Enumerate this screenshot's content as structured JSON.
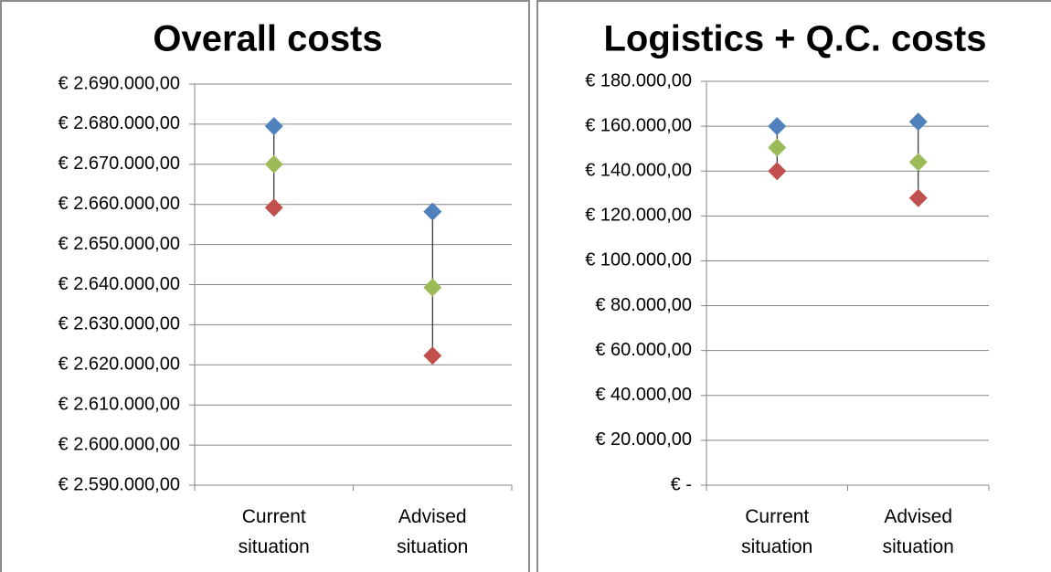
{
  "chart_data": [
    {
      "type": "stock",
      "title": "Overall costs",
      "categories": [
        "Current situation",
        "Advised situation"
      ],
      "series": [
        {
          "color": "#4f81bd",
          "values": [
            2679500,
            2658200
          ]
        },
        {
          "color": "#9bbb59",
          "values": [
            2670000,
            2639300
          ]
        },
        {
          "color": "#c0504d",
          "values": [
            2659200,
            2622300
          ]
        }
      ],
      "ylim": [
        2590000,
        2690000
      ],
      "yticks": [
        {
          "value": 2590000,
          "label": "€ 2.590.000,00"
        },
        {
          "value": 2600000,
          "label": "€ 2.600.000,00"
        },
        {
          "value": 2610000,
          "label": "€ 2.610.000,00"
        },
        {
          "value": 2620000,
          "label": "€ 2.620.000,00"
        },
        {
          "value": 2630000,
          "label": "€ 2.630.000,00"
        },
        {
          "value": 2640000,
          "label": "€ 2.640.000,00"
        },
        {
          "value": 2650000,
          "label": "€ 2.650.000,00"
        },
        {
          "value": 2660000,
          "label": "€ 2.660.000,00"
        },
        {
          "value": 2670000,
          "label": "€ 2.670.000,00"
        },
        {
          "value": 2680000,
          "label": "€ 2.680.000,00"
        },
        {
          "value": 2690000,
          "label": "€ 2.690.000,00"
        }
      ],
      "grid": true
    },
    {
      "type": "stock",
      "title": "Logistics + Q.C. costs",
      "categories": [
        "Current situation",
        "Advised situation"
      ],
      "series": [
        {
          "color": "#4f81bd",
          "values": [
            160000,
            162000
          ]
        },
        {
          "color": "#9bbb59",
          "values": [
            150500,
            144000
          ]
        },
        {
          "color": "#c0504d",
          "values": [
            140000,
            128000
          ]
        }
      ],
      "ylim": [
        0,
        180000
      ],
      "yticks": [
        {
          "value": 0,
          "label": "€ -"
        },
        {
          "value": 20000,
          "label": "€ 20.000,00"
        },
        {
          "value": 40000,
          "label": "€ 40.000,00"
        },
        {
          "value": 60000,
          "label": "€ 60.000,00"
        },
        {
          "value": 80000,
          "label": "€ 80.000,00"
        },
        {
          "value": 100000,
          "label": "€ 100.000,00"
        },
        {
          "value": 120000,
          "label": "€ 120.000,00"
        },
        {
          "value": 140000,
          "label": "€ 140.000,00"
        },
        {
          "value": 160000,
          "label": "€ 160.000,00"
        },
        {
          "value": 180000,
          "label": "€ 180.000,00"
        }
      ],
      "grid": true
    }
  ]
}
